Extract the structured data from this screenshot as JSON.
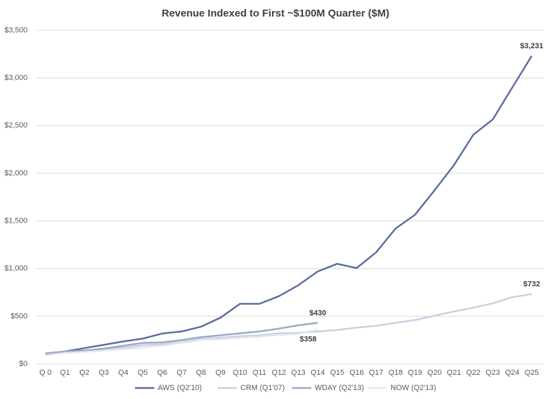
{
  "chart_data": {
    "type": "line",
    "title": "Revenue Indexed to First ~$100M Quarter ($M)",
    "categories": [
      "Q 0",
      "Q1",
      "Q2",
      "Q3",
      "Q4",
      "Q5",
      "Q6",
      "Q7",
      "Q8",
      "Q9",
      "Q10",
      "Q11",
      "Q12",
      "Q13",
      "Q14",
      "Q15",
      "Q16",
      "Q17",
      "Q18",
      "Q19",
      "Q20",
      "Q21",
      "Q22",
      "Q23",
      "Q24",
      "Q25"
    ],
    "series": [
      {
        "name": "AWS (Q2'10)",
        "color": "#5b6f9e",
        "values": [
          101,
          130,
          165,
          200,
          235,
          265,
          318,
          340,
          390,
          485,
          630,
          630,
          710,
          825,
          970,
          1050,
          1005,
          1170,
          1420,
          1565,
          1820,
          2085,
          2405,
          2565,
          2900,
          3231
        ],
        "value_labels": [
          null,
          null,
          null,
          null,
          null,
          null,
          null,
          null,
          null,
          null,
          null,
          null,
          null,
          null,
          null,
          null,
          null,
          null,
          null,
          null,
          null,
          null,
          null,
          null,
          null,
          "$3,231"
        ]
      },
      {
        "name": "CRM (Q1'07)",
        "color": "#c8d0e0",
        "values": [
          110,
          125,
          135,
          150,
          170,
          195,
          205,
          230,
          260,
          275,
          290,
          300,
          320,
          325,
          340,
          355,
          380,
          400,
          430,
          460,
          505,
          550,
          590,
          635,
          700,
          732
        ],
        "value_labels": [
          null,
          null,
          null,
          null,
          null,
          null,
          null,
          null,
          null,
          null,
          null,
          null,
          null,
          null,
          null,
          null,
          null,
          null,
          null,
          null,
          null,
          null,
          null,
          null,
          null,
          "$732"
        ]
      },
      {
        "name": "WDAY (Q2'13)",
        "color": "#9ba8c8",
        "values": [
          110,
          130,
          140,
          160,
          190,
          220,
          225,
          250,
          280,
          300,
          320,
          340,
          370,
          405,
          430,
          null,
          null,
          null,
          null,
          null,
          null,
          null,
          null,
          null,
          null,
          null
        ],
        "value_labels": [
          null,
          null,
          null,
          null,
          null,
          null,
          null,
          null,
          null,
          null,
          null,
          null,
          null,
          null,
          "$430",
          null,
          null,
          null,
          null,
          null,
          null,
          null,
          null,
          null,
          null,
          null
        ]
      },
      {
        "name": "NOW (Q2'13)",
        "color": "#e4e7ef",
        "values": [
          90,
          115,
          125,
          140,
          155,
          170,
          190,
          220,
          250,
          260,
          275,
          285,
          305,
          315,
          358,
          null,
          null,
          null,
          null,
          null,
          null,
          null,
          null,
          null,
          null,
          null
        ],
        "value_labels": [
          null,
          null,
          null,
          null,
          null,
          null,
          null,
          null,
          null,
          null,
          null,
          null,
          null,
          null,
          "$358",
          null,
          null,
          null,
          null,
          null,
          null,
          null,
          null,
          null,
          null,
          null
        ]
      }
    ],
    "ylim": [
      0,
      3500
    ],
    "yticks": [
      {
        "value": 0,
        "label": "$0"
      },
      {
        "value": 500,
        "label": "$500"
      },
      {
        "value": 1000,
        "label": "$1,000"
      },
      {
        "value": 1500,
        "label": "$1,500"
      },
      {
        "value": 2000,
        "label": "$2,000"
      },
      {
        "value": 2500,
        "label": "$2,500"
      },
      {
        "value": 3000,
        "label": "$3,000"
      },
      {
        "value": 3500,
        "label": "$3,500"
      }
    ],
    "grid": true,
    "legend": "bottom"
  }
}
